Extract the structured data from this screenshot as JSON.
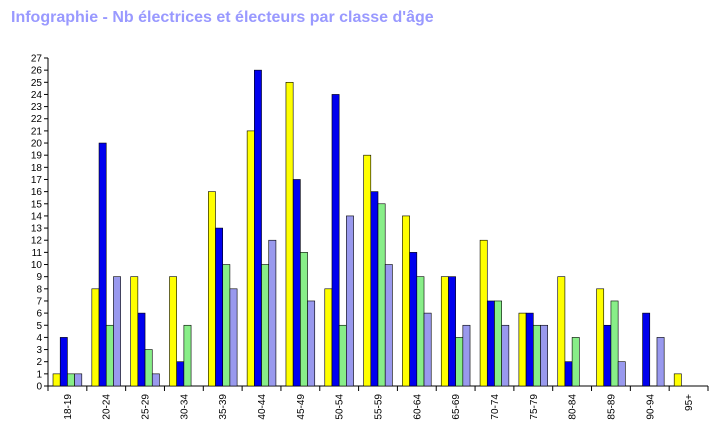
{
  "chart_data": {
    "type": "bar",
    "title": "Infographie - Nb électrices et électeurs par classe d'âge",
    "xlabel": "",
    "ylabel": "",
    "ylim": [
      0,
      27
    ],
    "yticks": [
      0,
      1,
      2,
      3,
      4,
      5,
      6,
      7,
      8,
      9,
      10,
      11,
      12,
      13,
      14,
      15,
      16,
      17,
      18,
      19,
      20,
      21,
      22,
      23,
      24,
      25,
      26,
      27
    ],
    "grid": false,
    "legend": "none",
    "categories": [
      "18-19",
      "20-24",
      "25-29",
      "30-34",
      "35-39",
      "40-44",
      "45-49",
      "50-54",
      "55-59",
      "60-64",
      "65-69",
      "70-74",
      "75-79",
      "80-84",
      "85-89",
      "90-94",
      "95+"
    ],
    "series": [
      {
        "color": "#ffff00",
        "values": [
          1,
          8,
          9,
          9,
          16,
          21,
          25,
          8,
          19,
          14,
          9,
          12,
          6,
          9,
          8,
          0,
          1
        ]
      },
      {
        "color": "#0000ee",
        "values": [
          4,
          20,
          6,
          2,
          13,
          26,
          17,
          24,
          16,
          11,
          9,
          7,
          6,
          2,
          5,
          6,
          0
        ]
      },
      {
        "color": "#88ee88",
        "values": [
          1,
          5,
          3,
          5,
          10,
          10,
          11,
          5,
          15,
          9,
          4,
          7,
          5,
          4,
          7,
          0,
          0
        ]
      },
      {
        "color": "#9999ee",
        "values": [
          1,
          9,
          1,
          0,
          8,
          12,
          7,
          14,
          10,
          6,
          5,
          5,
          5,
          0,
          2,
          4,
          0
        ]
      }
    ]
  }
}
